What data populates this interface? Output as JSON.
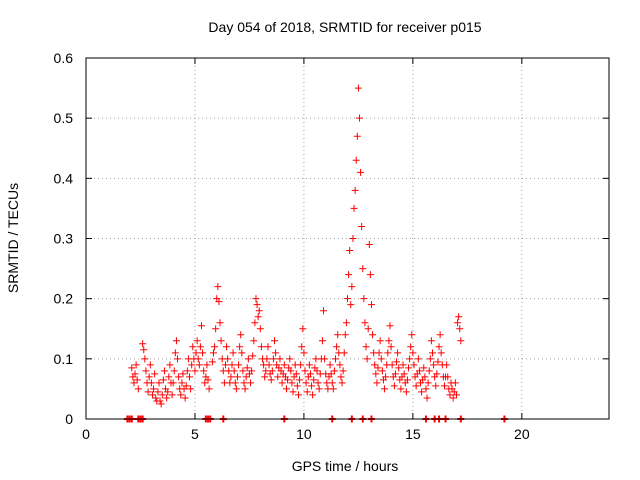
{
  "chart_data": {
    "type": "scatter",
    "title": "Day 054 of 2018, SRMTID for receiver p015",
    "xlabel": "GPS time / hours",
    "ylabel": "SRMTID / TECUs",
    "xlim": [
      0,
      24
    ],
    "ylim": [
      0,
      0.6
    ],
    "x_ticks": [
      0,
      5,
      10,
      15,
      20
    ],
    "x_tick_labels": [
      "0",
      "5",
      "10",
      "15",
      "20"
    ],
    "y_ticks": [
      0,
      0.1,
      0.2,
      0.3,
      0.4,
      0.5,
      0.6
    ],
    "y_tick_labels": [
      "0",
      "0.1",
      "0.2",
      "0.3",
      "0.4",
      "0.5",
      "0.6"
    ],
    "grid": true,
    "marker": "plus",
    "series": [
      {
        "name": "SRMTID",
        "color": "#ff0000",
        "points": [
          [
            2.1,
            0.085
          ],
          [
            2.15,
            0.07
          ],
          [
            2.2,
            0.06
          ],
          [
            2.25,
            0.075
          ],
          [
            2.3,
            0.09
          ],
          [
            2.35,
            0.065
          ],
          [
            2.4,
            0.05
          ],
          [
            2.6,
            0.125
          ],
          [
            2.65,
            0.115
          ],
          [
            2.7,
            0.1
          ],
          [
            2.75,
            0.08
          ],
          [
            2.8,
            0.06
          ],
          [
            2.85,
            0.045
          ],
          [
            2.9,
            0.07
          ],
          [
            2.95,
            0.09
          ],
          [
            3.0,
            0.06
          ],
          [
            3.05,
            0.04
          ],
          [
            3.1,
            0.05
          ],
          [
            3.15,
            0.075
          ],
          [
            3.2,
            0.035
          ],
          [
            3.25,
            0.03
          ],
          [
            3.3,
            0.045
          ],
          [
            3.35,
            0.06
          ],
          [
            3.4,
            0.03
          ],
          [
            3.45,
            0.025
          ],
          [
            3.5,
            0.04
          ],
          [
            3.55,
            0.065
          ],
          [
            3.6,
            0.08
          ],
          [
            3.65,
            0.05
          ],
          [
            3.7,
            0.035
          ],
          [
            3.75,
            0.045
          ],
          [
            3.8,
            0.07
          ],
          [
            3.85,
            0.09
          ],
          [
            3.9,
            0.06
          ],
          [
            3.95,
            0.04
          ],
          [
            4.0,
            0.06
          ],
          [
            4.05,
            0.08
          ],
          [
            4.1,
            0.11
          ],
          [
            4.15,
            0.13
          ],
          [
            4.2,
            0.1
          ],
          [
            4.25,
            0.07
          ],
          [
            4.3,
            0.05
          ],
          [
            4.35,
            0.04
          ],
          [
            4.4,
            0.06
          ],
          [
            4.45,
            0.075
          ],
          [
            4.5,
            0.05
          ],
          [
            4.55,
            0.035
          ],
          [
            4.6,
            0.055
          ],
          [
            4.65,
            0.08
          ],
          [
            4.7,
            0.1
          ],
          [
            4.75,
            0.07
          ],
          [
            4.8,
            0.05
          ],
          [
            4.85,
            0.09
          ],
          [
            4.9,
            0.12
          ],
          [
            4.95,
            0.1
          ],
          [
            5.0,
            0.08
          ],
          [
            5.05,
            0.11
          ],
          [
            5.1,
            0.13
          ],
          [
            5.15,
            0.1
          ],
          [
            5.2,
            0.09
          ],
          [
            5.25,
            0.12
          ],
          [
            5.3,
            0.155
          ],
          [
            5.35,
            0.11
          ],
          [
            5.4,
            0.08
          ],
          [
            5.45,
            0.06
          ],
          [
            5.5,
            0.07
          ],
          [
            5.55,
            0.09
          ],
          [
            5.6,
            0.065
          ],
          [
            5.65,
            0.05
          ],
          [
            5.8,
            0.095
          ],
          [
            5.85,
            0.11
          ],
          [
            5.9,
            0.12
          ],
          [
            5.95,
            0.15
          ],
          [
            6.0,
            0.2
          ],
          [
            6.05,
            0.22
          ],
          [
            6.1,
            0.195
          ],
          [
            6.15,
            0.16
          ],
          [
            6.2,
            0.13
          ],
          [
            6.25,
            0.1
          ],
          [
            6.3,
            0.08
          ],
          [
            6.35,
            0.06
          ],
          [
            6.4,
            0.09
          ],
          [
            6.45,
            0.12
          ],
          [
            6.5,
            0.1
          ],
          [
            6.55,
            0.08
          ],
          [
            6.6,
            0.06
          ],
          [
            6.65,
            0.07
          ],
          [
            6.7,
            0.09
          ],
          [
            6.75,
            0.11
          ],
          [
            6.8,
            0.08
          ],
          [
            6.85,
            0.06
          ],
          [
            6.9,
            0.05
          ],
          [
            6.95,
            0.07
          ],
          [
            7.0,
            0.09
          ],
          [
            7.05,
            0.12
          ],
          [
            7.1,
            0.14
          ],
          [
            7.15,
            0.11
          ],
          [
            7.2,
            0.08
          ],
          [
            7.25,
            0.06
          ],
          [
            7.3,
            0.05
          ],
          [
            7.35,
            0.07
          ],
          [
            7.4,
            0.085
          ],
          [
            7.45,
            0.1
          ],
          [
            7.5,
            0.075
          ],
          [
            7.55,
            0.06
          ],
          [
            7.6,
            0.08
          ],
          [
            7.65,
            0.105
          ],
          [
            7.7,
            0.13
          ],
          [
            7.75,
            0.16
          ],
          [
            7.8,
            0.2
          ],
          [
            7.85,
            0.19
          ],
          [
            7.9,
            0.17
          ],
          [
            7.95,
            0.18
          ],
          [
            8.0,
            0.15
          ],
          [
            8.05,
            0.12
          ],
          [
            8.1,
            0.1
          ],
          [
            8.15,
            0.09
          ],
          [
            8.2,
            0.07
          ],
          [
            8.25,
            0.08
          ],
          [
            8.3,
            0.1
          ],
          [
            8.35,
            0.12
          ],
          [
            8.4,
            0.09
          ],
          [
            8.45,
            0.075
          ],
          [
            8.5,
            0.065
          ],
          [
            8.55,
            0.08
          ],
          [
            8.6,
            0.1
          ],
          [
            8.65,
            0.13
          ],
          [
            8.7,
            0.11
          ],
          [
            8.75,
            0.09
          ],
          [
            8.8,
            0.07
          ],
          [
            8.85,
            0.085
          ],
          [
            8.9,
            0.1
          ],
          [
            8.95,
            0.08
          ],
          [
            9.0,
            0.06
          ],
          [
            9.05,
            0.075
          ],
          [
            9.1,
            0.09
          ],
          [
            9.15,
            0.07
          ],
          [
            9.2,
            0.05
          ],
          [
            9.25,
            0.065
          ],
          [
            9.3,
            0.085
          ],
          [
            9.35,
            0.1
          ],
          [
            9.4,
            0.08
          ],
          [
            9.45,
            0.06
          ],
          [
            9.5,
            0.045
          ],
          [
            9.55,
            0.07
          ],
          [
            9.6,
            0.09
          ],
          [
            9.65,
            0.075
          ],
          [
            9.7,
            0.055
          ],
          [
            9.75,
            0.04
          ],
          [
            9.8,
            0.065
          ],
          [
            9.85,
            0.09
          ],
          [
            9.9,
            0.12
          ],
          [
            9.95,
            0.15
          ],
          [
            10.0,
            0.11
          ],
          [
            10.05,
            0.08
          ],
          [
            10.1,
            0.06
          ],
          [
            10.15,
            0.045
          ],
          [
            10.2,
            0.07
          ],
          [
            10.25,
            0.09
          ],
          [
            10.3,
            0.075
          ],
          [
            10.35,
            0.055
          ],
          [
            10.4,
            0.04
          ],
          [
            10.45,
            0.065
          ],
          [
            10.5,
            0.085
          ],
          [
            10.55,
            0.1
          ],
          [
            10.6,
            0.08
          ],
          [
            10.65,
            0.06
          ],
          [
            10.7,
            0.05
          ],
          [
            10.75,
            0.075
          ],
          [
            10.8,
            0.1
          ],
          [
            10.85,
            0.13
          ],
          [
            10.9,
            0.18
          ],
          [
            10.95,
            0.1
          ],
          [
            11.0,
            0.075
          ],
          [
            11.05,
            0.06
          ],
          [
            11.1,
            0.05
          ],
          [
            11.15,
            0.07
          ],
          [
            11.2,
            0.09
          ],
          [
            11.25,
            0.075
          ],
          [
            11.3,
            0.06
          ],
          [
            11.35,
            0.05
          ],
          [
            11.4,
            0.08
          ],
          [
            11.45,
            0.1
          ],
          [
            11.5,
            0.12
          ],
          [
            11.55,
            0.14
          ],
          [
            11.6,
            0.11
          ],
          [
            11.65,
            0.09
          ],
          [
            11.7,
            0.07
          ],
          [
            11.75,
            0.06
          ],
          [
            11.8,
            0.08
          ],
          [
            11.85,
            0.11
          ],
          [
            11.9,
            0.14
          ],
          [
            11.95,
            0.16
          ],
          [
            12.0,
            0.2
          ],
          [
            12.05,
            0.24
          ],
          [
            12.1,
            0.28
          ],
          [
            12.15,
            0.19
          ],
          [
            12.2,
            0.22
          ],
          [
            12.25,
            0.3
          ],
          [
            12.3,
            0.35
          ],
          [
            12.35,
            0.38
          ],
          [
            12.4,
            0.43
          ],
          [
            12.45,
            0.47
          ],
          [
            12.5,
            0.55
          ],
          [
            12.55,
            0.5
          ],
          [
            12.6,
            0.41
          ],
          [
            12.65,
            0.32
          ],
          [
            12.7,
            0.25
          ],
          [
            12.75,
            0.2
          ],
          [
            12.8,
            0.16
          ],
          [
            12.85,
            0.12
          ],
          [
            12.9,
            0.1
          ],
          [
            12.95,
            0.15
          ],
          [
            13.0,
            0.29
          ],
          [
            13.05,
            0.24
          ],
          [
            13.1,
            0.19
          ],
          [
            13.15,
            0.14
          ],
          [
            13.2,
            0.11
          ],
          [
            13.25,
            0.09
          ],
          [
            13.3,
            0.075
          ],
          [
            13.35,
            0.06
          ],
          [
            13.4,
            0.085
          ],
          [
            13.45,
            0.11
          ],
          [
            13.5,
            0.13
          ],
          [
            13.55,
            0.1
          ],
          [
            13.6,
            0.08
          ],
          [
            13.65,
            0.065
          ],
          [
            13.7,
            0.05
          ],
          [
            13.75,
            0.07
          ],
          [
            13.8,
            0.09
          ],
          [
            13.85,
            0.11
          ],
          [
            13.9,
            0.13
          ],
          [
            13.95,
            0.155
          ],
          [
            14.0,
            0.12
          ],
          [
            14.05,
            0.09
          ],
          [
            14.1,
            0.07
          ],
          [
            14.15,
            0.055
          ],
          [
            14.2,
            0.075
          ],
          [
            14.25,
            0.095
          ],
          [
            14.3,
            0.11
          ],
          [
            14.35,
            0.085
          ],
          [
            14.4,
            0.065
          ],
          [
            14.45,
            0.05
          ],
          [
            14.5,
            0.07
          ],
          [
            14.55,
            0.09
          ],
          [
            14.6,
            0.075
          ],
          [
            14.65,
            0.06
          ],
          [
            14.7,
            0.045
          ],
          [
            14.75,
            0.065
          ],
          [
            14.8,
            0.085
          ],
          [
            14.85,
            0.1
          ],
          [
            14.9,
            0.12
          ],
          [
            14.95,
            0.14
          ],
          [
            15.0,
            0.11
          ],
          [
            15.05,
            0.09
          ],
          [
            15.1,
            0.07
          ],
          [
            15.15,
            0.055
          ],
          [
            15.2,
            0.075
          ],
          [
            15.25,
            0.1
          ],
          [
            15.3,
            0.08
          ],
          [
            15.35,
            0.06
          ],
          [
            15.4,
            0.045
          ],
          [
            15.45,
            0.065
          ],
          [
            15.5,
            0.085
          ],
          [
            15.55,
            0.07
          ],
          [
            15.6,
            0.05
          ],
          [
            15.65,
            0.035
          ],
          [
            15.7,
            0.06
          ],
          [
            15.75,
            0.08
          ],
          [
            15.8,
            0.1
          ],
          [
            15.85,
            0.13
          ],
          [
            15.9,
            0.11
          ],
          [
            15.95,
            0.09
          ],
          [
            16.0,
            0.07
          ],
          [
            16.05,
            0.055
          ],
          [
            16.1,
            0.075
          ],
          [
            16.15,
            0.095
          ],
          [
            16.2,
            0.12
          ],
          [
            16.25,
            0.14
          ],
          [
            16.3,
            0.11
          ],
          [
            16.35,
            0.09
          ],
          [
            16.4,
            0.07
          ],
          [
            16.45,
            0.055
          ],
          [
            16.5,
            0.07
          ],
          [
            16.55,
            0.09
          ],
          [
            16.6,
            0.07
          ],
          [
            16.65,
            0.05
          ],
          [
            16.7,
            0.04
          ],
          [
            16.75,
            0.06
          ],
          [
            16.8,
            0.05
          ],
          [
            16.85,
            0.035
          ],
          [
            16.9,
            0.045
          ],
          [
            16.95,
            0.06
          ],
          [
            17.0,
            0.04
          ],
          [
            17.05,
            0.16
          ],
          [
            17.1,
            0.17
          ],
          [
            17.15,
            0.15
          ],
          [
            17.2,
            0.13
          ]
        ]
      }
    ],
    "baseline_marks_x": [
      1.9,
      2.0,
      2.1,
      2.4,
      2.5,
      2.6,
      5.5,
      5.6,
      5.7,
      6.3,
      9.1,
      11.3,
      12.2,
      12.7,
      13.1,
      15.6,
      16.0,
      16.2,
      16.5,
      17.2,
      19.2
    ]
  }
}
